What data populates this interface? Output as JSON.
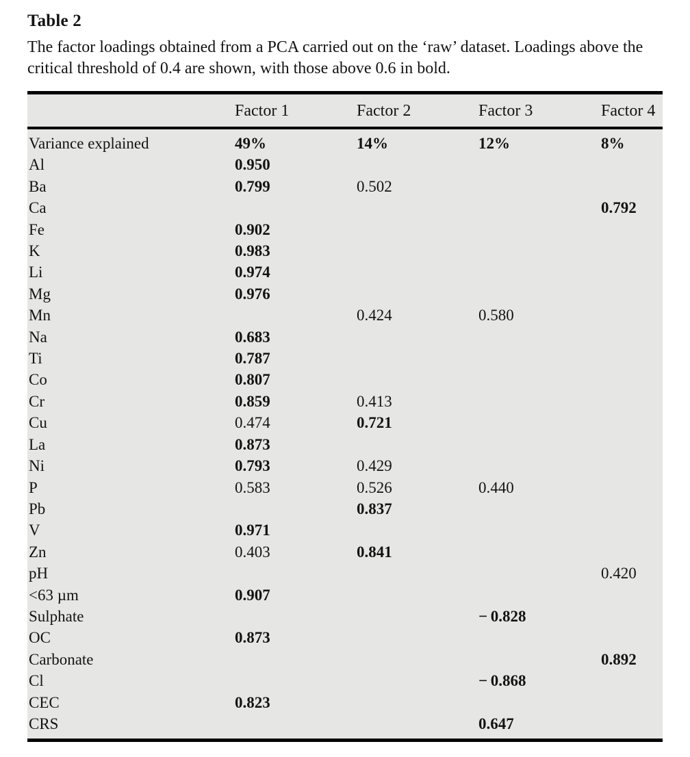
{
  "page": {
    "title": "Table 2",
    "caption": "The factor loadings obtained from a PCA carried out on the ‘raw’ dataset. Loadings above the critical threshold of 0.4 are shown, with those above 0.6 in bold."
  },
  "colors": {
    "table_background": "#e6e6e4",
    "rule_color": "#000000",
    "text_color": "#131313"
  },
  "table": {
    "columns": [
      "",
      "Factor 1",
      "Factor 2",
      "Factor 3",
      "Factor 4"
    ],
    "bold_note": "values above 0.6 shown in bold",
    "rows": [
      {
        "label": "Variance explained",
        "values": [
          "49%",
          "14%",
          "12%",
          "8%"
        ],
        "bold": [
          true,
          true,
          true,
          true
        ]
      },
      {
        "label": "Al",
        "values": [
          "0.950",
          "",
          "",
          ""
        ],
        "bold": [
          true,
          false,
          false,
          false
        ]
      },
      {
        "label": "Ba",
        "values": [
          "0.799",
          "0.502",
          "",
          ""
        ],
        "bold": [
          true,
          false,
          false,
          false
        ]
      },
      {
        "label": "Ca",
        "values": [
          "",
          "",
          "",
          "0.792"
        ],
        "bold": [
          false,
          false,
          false,
          true
        ]
      },
      {
        "label": "Fe",
        "values": [
          "0.902",
          "",
          "",
          ""
        ],
        "bold": [
          true,
          false,
          false,
          false
        ]
      },
      {
        "label": "K",
        "values": [
          "0.983",
          "",
          "",
          ""
        ],
        "bold": [
          true,
          false,
          false,
          false
        ]
      },
      {
        "label": "Li",
        "values": [
          "0.974",
          "",
          "",
          ""
        ],
        "bold": [
          true,
          false,
          false,
          false
        ]
      },
      {
        "label": "Mg",
        "values": [
          "0.976",
          "",
          "",
          ""
        ],
        "bold": [
          true,
          false,
          false,
          false
        ]
      },
      {
        "label": "Mn",
        "values": [
          "",
          "0.424",
          "0.580",
          ""
        ],
        "bold": [
          false,
          false,
          false,
          false
        ]
      },
      {
        "label": "Na",
        "values": [
          "0.683",
          "",
          "",
          ""
        ],
        "bold": [
          true,
          false,
          false,
          false
        ]
      },
      {
        "label": "Ti",
        "values": [
          "0.787",
          "",
          "",
          ""
        ],
        "bold": [
          true,
          false,
          false,
          false
        ]
      },
      {
        "label": "Co",
        "values": [
          "0.807",
          "",
          "",
          ""
        ],
        "bold": [
          true,
          false,
          false,
          false
        ]
      },
      {
        "label": "Cr",
        "values": [
          "0.859",
          "0.413",
          "",
          ""
        ],
        "bold": [
          true,
          false,
          false,
          false
        ]
      },
      {
        "label": "Cu",
        "values": [
          "0.474",
          "0.721",
          "",
          ""
        ],
        "bold": [
          false,
          true,
          false,
          false
        ]
      },
      {
        "label": "La",
        "values": [
          "0.873",
          "",
          "",
          ""
        ],
        "bold": [
          true,
          false,
          false,
          false
        ]
      },
      {
        "label": "Ni",
        "values": [
          "0.793",
          "0.429",
          "",
          ""
        ],
        "bold": [
          true,
          false,
          false,
          false
        ]
      },
      {
        "label": "P",
        "values": [
          "0.583",
          "0.526",
          "0.440",
          ""
        ],
        "bold": [
          false,
          false,
          false,
          false
        ]
      },
      {
        "label": "Pb",
        "values": [
          "",
          "0.837",
          "",
          ""
        ],
        "bold": [
          false,
          true,
          false,
          false
        ]
      },
      {
        "label": "V",
        "values": [
          "0.971",
          "",
          "",
          ""
        ],
        "bold": [
          true,
          false,
          false,
          false
        ]
      },
      {
        "label": "Zn",
        "values": [
          "0.403",
          "0.841",
          "",
          ""
        ],
        "bold": [
          false,
          true,
          false,
          false
        ]
      },
      {
        "label": "pH",
        "values": [
          "",
          "",
          "",
          "0.420"
        ],
        "bold": [
          false,
          false,
          false,
          false
        ]
      },
      {
        "label": "<63 µm",
        "values": [
          "0.907",
          "",
          "",
          ""
        ],
        "bold": [
          true,
          false,
          false,
          false
        ]
      },
      {
        "label": "Sulphate",
        "values": [
          "",
          "",
          "− 0.828",
          ""
        ],
        "bold": [
          false,
          false,
          true,
          false
        ]
      },
      {
        "label": "OC",
        "values": [
          "0.873",
          "",
          "",
          ""
        ],
        "bold": [
          true,
          false,
          false,
          false
        ]
      },
      {
        "label": "Carbonate",
        "values": [
          "",
          "",
          "",
          "0.892"
        ],
        "bold": [
          false,
          false,
          false,
          true
        ]
      },
      {
        "label": "Cl",
        "values": [
          "",
          "",
          "− 0.868",
          ""
        ],
        "bold": [
          false,
          false,
          true,
          false
        ]
      },
      {
        "label": "CEC",
        "values": [
          "0.823",
          "",
          "",
          ""
        ],
        "bold": [
          true,
          false,
          false,
          false
        ]
      },
      {
        "label": "CRS",
        "values": [
          "",
          "",
          "0.647",
          ""
        ],
        "bold": [
          false,
          false,
          true,
          false
        ]
      }
    ]
  }
}
